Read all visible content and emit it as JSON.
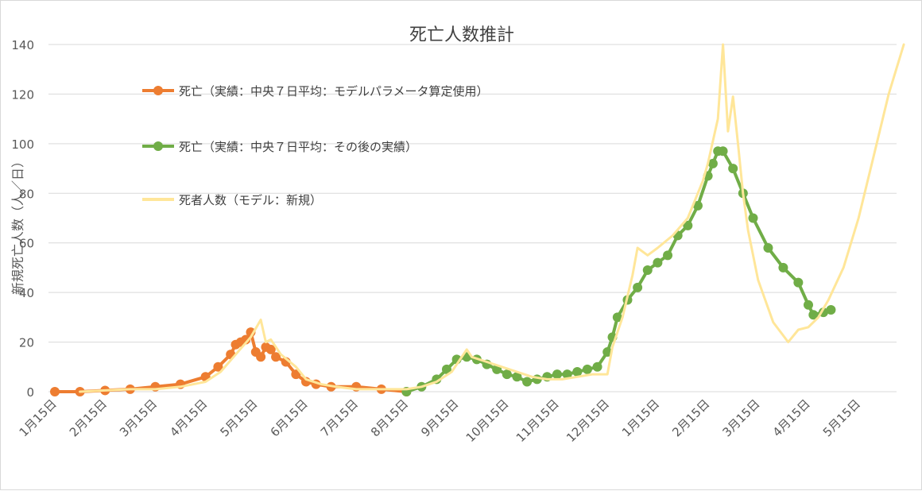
{
  "chart_data": {
    "type": "line",
    "title": "死亡人数推計",
    "ylabel": "新規死亡人数（人／日）",
    "xlabel": "",
    "ylim": [
      0,
      140
    ],
    "yticks": [
      0,
      20,
      40,
      60,
      80,
      100,
      120,
      140
    ],
    "x_ticks": [
      "1月15日",
      "2月15日",
      "3月15日",
      "4月15日",
      "5月15日",
      "6月15日",
      "7月15日",
      "8月15日",
      "9月15日",
      "10月15日",
      "11月15日",
      "12月15日",
      "1月15日",
      "2月15日",
      "3月15日",
      "4月15日",
      "5月15日"
    ],
    "grid": true,
    "legend_position": "top-left",
    "colors": {
      "orange": "#ed7d31",
      "green": "#70ad47",
      "yellow": "#ffe699",
      "grid": "#d9d9d9",
      "text": "#595959"
    },
    "series": [
      {
        "name": "死亡（実績：中央７日平均：モデルパラメータ算定使用）",
        "color": "#ed7d31",
        "style": "line-markers",
        "x": [
          0,
          0.5,
          1,
          1.5,
          2,
          2.5,
          3,
          3.25,
          3.5,
          3.6,
          3.7,
          3.8,
          3.9,
          4,
          4.1,
          4.2,
          4.3,
          4.4,
          4.6,
          4.8,
          5,
          5.2,
          5.5,
          6,
          6.5,
          7
        ],
        "y": [
          0,
          0,
          0.5,
          1,
          2,
          3,
          6,
          10,
          15,
          19,
          20,
          21,
          24,
          16,
          14,
          18,
          17,
          14,
          12,
          7,
          4,
          3,
          2,
          2,
          1,
          0
        ]
      },
      {
        "name": "死亡（実績：中央７日平均：その後の実績）",
        "color": "#70ad47",
        "style": "line-markers",
        "x": [
          7,
          7.3,
          7.6,
          7.8,
          8,
          8.2,
          8.4,
          8.6,
          8.8,
          9,
          9.2,
          9.4,
          9.6,
          9.8,
          10,
          10.2,
          10.4,
          10.6,
          10.8,
          11,
          11.1,
          11.2,
          11.4,
          11.6,
          11.8,
          12,
          12.2,
          12.4,
          12.6,
          12.8,
          13,
          13.1,
          13.2,
          13.3,
          13.5,
          13.7,
          13.9,
          14.2,
          14.5,
          14.8,
          15,
          15.1,
          15.3,
          15.45
        ],
        "y": [
          0,
          2,
          5,
          9,
          13,
          14,
          13,
          11,
          9,
          7,
          6,
          4,
          5,
          6,
          7,
          7,
          8,
          9,
          10,
          16,
          22,
          30,
          37,
          42,
          49,
          52,
          55,
          63,
          67,
          75,
          87,
          92,
          97,
          97,
          90,
          80,
          70,
          58,
          50,
          44,
          35,
          31,
          32,
          33
        ]
      },
      {
        "name": "死者人数（モデル：新規）",
        "color": "#ffe699",
        "style": "line",
        "x": [
          0.5,
          1,
          1.5,
          2,
          2.5,
          3,
          3.3,
          3.6,
          3.9,
          4.1,
          4.2,
          4.3,
          4.5,
          4.8,
          5,
          5.3,
          5.6,
          6,
          6.5,
          7,
          7.3,
          7.6,
          7.9,
          8.1,
          8.2,
          8.3,
          8.6,
          8.9,
          9.2,
          9.5,
          9.8,
          10.1,
          10.4,
          10.7,
          11,
          11.1,
          11.3,
          11.5,
          11.6,
          11.8,
          12,
          12.3,
          12.6,
          12.9,
          13,
          13.2,
          13.3,
          13.4,
          13.5,
          13.6,
          13.7,
          13.8,
          14,
          14.3,
          14.6,
          14.8,
          15,
          15.2,
          15.4,
          15.7,
          16,
          16.3,
          16.6,
          16.9
        ],
        "y": [
          0,
          0.5,
          1,
          1,
          2,
          4,
          8,
          15,
          22,
          29,
          20,
          21,
          15,
          10,
          5,
          3,
          2,
          1,
          1,
          1,
          2,
          4,
          8,
          14,
          17,
          14,
          12,
          10,
          8,
          6,
          5,
          5,
          6,
          7,
          7,
          18,
          30,
          47,
          58,
          55,
          58,
          63,
          70,
          85,
          92,
          110,
          140,
          105,
          119,
          100,
          80,
          65,
          45,
          28,
          20,
          25,
          26,
          30,
          37,
          50,
          70,
          95,
          120,
          140
        ]
      }
    ]
  }
}
